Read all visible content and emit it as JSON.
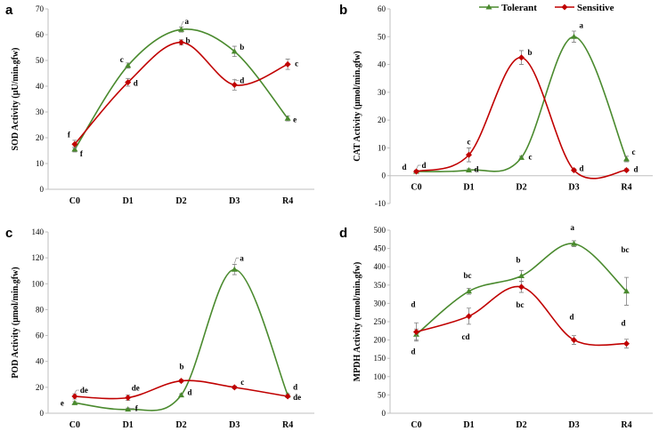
{
  "legend": [
    {
      "name": "Tolerant",
      "color": "#4a8a2e"
    },
    {
      "name": "Sensitive",
      "color": "#c00000"
    }
  ],
  "chart_data": [
    {
      "panel": "a",
      "type": "line",
      "ylabel": "SOD Activity (μU/min.gfw)",
      "categories": [
        "C0",
        "D1",
        "D2",
        "D3",
        "R4"
      ],
      "ylim": [
        0,
        70
      ],
      "yticks": [
        0,
        10,
        20,
        30,
        40,
        50,
        60,
        70
      ],
      "series": [
        {
          "name": "Tolerant",
          "values": [
            15.5,
            48,
            62,
            53.5,
            27.5
          ],
          "errors": [
            1,
            1,
            1,
            2,
            1
          ],
          "labels": [
            "f",
            "c",
            "a",
            "b",
            "e"
          ]
        },
        {
          "name": "Sensitive",
          "values": [
            17.5,
            41.5,
            57,
            40.5,
            48.5
          ],
          "errors": [
            1.5,
            1.5,
            1,
            2,
            2
          ],
          "labels": [
            "f",
            "d",
            "b",
            "d",
            "c"
          ]
        }
      ]
    },
    {
      "panel": "b",
      "type": "line",
      "ylabel": "CAT Activity (μmol/min.gfw)",
      "categories": [
        "C0",
        "D1",
        "D2",
        "D3",
        "R4"
      ],
      "ylim": [
        -10,
        60
      ],
      "yticks": [
        -10,
        0,
        10,
        20,
        30,
        40,
        50,
        60
      ],
      "series": [
        {
          "name": "Tolerant",
          "values": [
            1.5,
            2,
            6.5,
            50,
            6
          ],
          "errors": [
            0.5,
            0.5,
            0.5,
            2,
            1
          ],
          "labels": [
            "d",
            "d",
            "c",
            "a",
            "c"
          ]
        },
        {
          "name": "Sensitive",
          "values": [
            1.5,
            7.5,
            42.5,
            2,
            2
          ],
          "errors": [
            0.5,
            2.5,
            2.5,
            0.5,
            0.5
          ],
          "labels": [
            "d",
            "c",
            "b",
            "d",
            "d"
          ]
        }
      ]
    },
    {
      "panel": "c",
      "type": "line",
      "ylabel": "POD Activity (μmol/min.gfw)",
      "categories": [
        "C0",
        "D1",
        "D2",
        "D3",
        "R4"
      ],
      "ylim": [
        0,
        140
      ],
      "yticks": [
        0,
        20,
        40,
        60,
        80,
        100,
        120,
        140
      ],
      "series": [
        {
          "name": "Tolerant",
          "values": [
            8,
            3,
            14,
            111,
            14
          ],
          "errors": [
            1,
            1,
            1,
            4,
            1
          ],
          "labels": [
            "e",
            "f",
            "d",
            "a",
            "d"
          ]
        },
        {
          "name": "Sensitive",
          "values": [
            13,
            12,
            25,
            20,
            13
          ],
          "errors": [
            2,
            2,
            1,
            1,
            1
          ],
          "labels": [
            "de",
            "de",
            "b",
            "c",
            "de"
          ]
        }
      ]
    },
    {
      "panel": "d",
      "type": "line",
      "ylabel": "MPDH Activity (nmol/min.gfw)",
      "categories": [
        "C0",
        "D1",
        "D2",
        "D3",
        "R4"
      ],
      "ylim": [
        0,
        500
      ],
      "yticks": [
        0,
        50,
        100,
        150,
        200,
        250,
        300,
        350,
        400,
        450,
        500
      ],
      "series": [
        {
          "name": "Tolerant",
          "values": [
            215,
            333,
            375,
            463,
            333
          ],
          "errors": [
            15,
            8,
            15,
            8,
            38
          ],
          "labels": [
            "d",
            "bc",
            "b",
            "a",
            "bc"
          ]
        },
        {
          "name": "Sensitive",
          "values": [
            222,
            265,
            345,
            200,
            190
          ],
          "errors": [
            25,
            22,
            15,
            12,
            12
          ],
          "labels": [
            "d",
            "cd",
            "bc",
            "d",
            "d"
          ]
        }
      ]
    }
  ]
}
